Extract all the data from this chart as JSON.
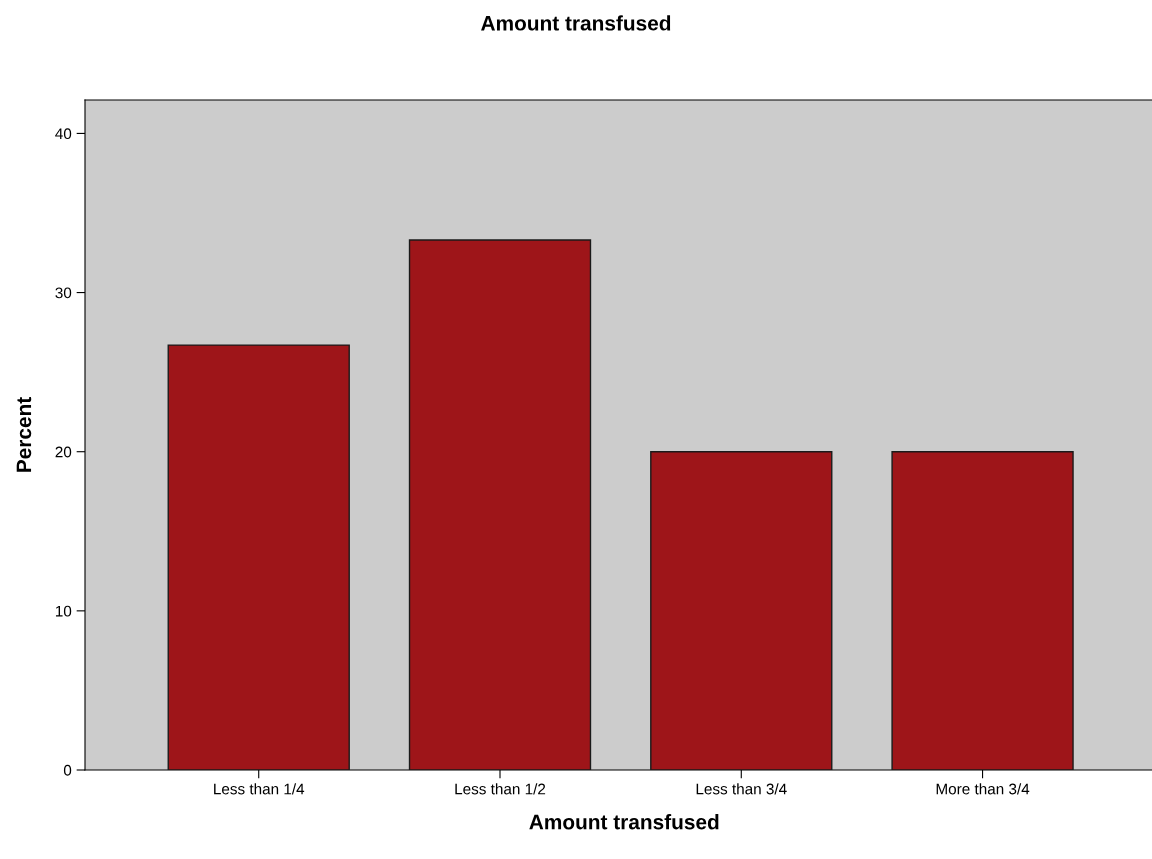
{
  "chart_data": {
    "type": "bar",
    "title": "Amount transfused",
    "xlabel": "Amount transfused",
    "ylabel": "Percent",
    "categories": [
      "Less than 1/4",
      "Less than 1/2",
      "Less than 3/4",
      "More than 3/4"
    ],
    "values": [
      26.7,
      33.3,
      20.0,
      20.0
    ],
    "color": "#9e1519",
    "ylim": [
      0,
      42.1
    ],
    "yticks": [
      0,
      10,
      20,
      30,
      40
    ],
    "grid": false
  }
}
